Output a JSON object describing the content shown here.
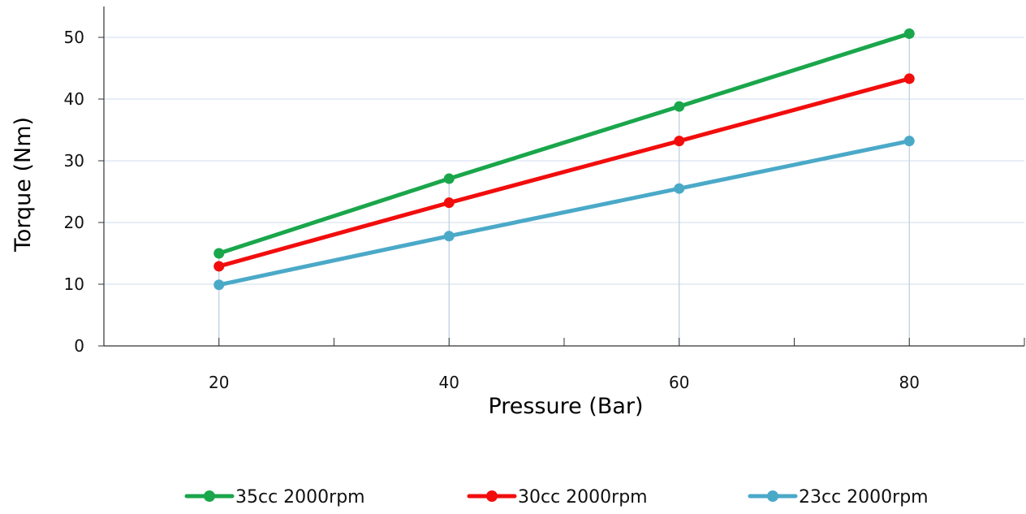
{
  "chart_data": {
    "type": "line",
    "title": "",
    "xlabel": "Pressure (Bar)",
    "ylabel": "Torque (Nm)",
    "x": [
      20,
      40,
      60,
      80
    ],
    "x_ticks": [
      20,
      40,
      60,
      80
    ],
    "y_ticks": [
      0,
      10,
      20,
      30,
      40,
      50
    ],
    "xlim": [
      10,
      90
    ],
    "ylim": [
      0,
      55
    ],
    "grid": "horizontal",
    "legend_position": "bottom",
    "series": [
      {
        "name": "35cc 2000rpm",
        "color": "#1aa64b",
        "values": [
          15.0,
          27.1,
          38.8,
          50.6
        ]
      },
      {
        "name": "30cc 2000rpm",
        "color": "#f20d0d",
        "values": [
          12.9,
          23.2,
          33.2,
          43.3
        ]
      },
      {
        "name": "23cc 2000rpm",
        "color": "#4ba9c8",
        "values": [
          9.9,
          17.8,
          25.5,
          33.2
        ]
      }
    ]
  }
}
